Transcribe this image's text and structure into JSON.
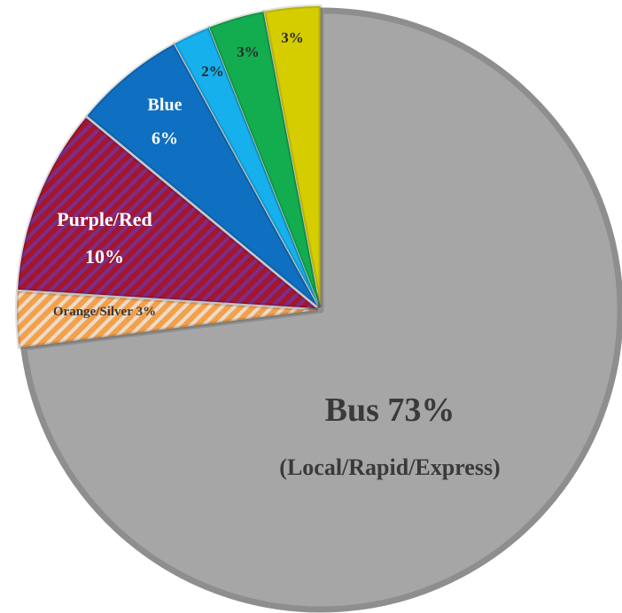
{
  "chart_data": {
    "type": "pie",
    "categories": [
      "Bus",
      "Orange/Silver",
      "Purple/Red",
      "Blue",
      null,
      null,
      null
    ],
    "values": [
      73,
      3,
      10,
      6,
      2,
      3,
      3
    ],
    "value_labels": [
      "73%",
      "3%",
      "10%",
      "6%",
      "2%",
      "3%",
      "3%"
    ],
    "annotation": "(Local/Rapid/Express)",
    "colors": [
      "#a6a6a6",
      "#f4a04a",
      "#a4162e",
      "#0f6fc0",
      "#16b0ec",
      "#13ad4f",
      "#d5cd00"
    ],
    "hatch_colors": [
      null,
      "#eadccc",
      "#7a2e8c",
      null,
      null,
      null,
      null
    ]
  }
}
